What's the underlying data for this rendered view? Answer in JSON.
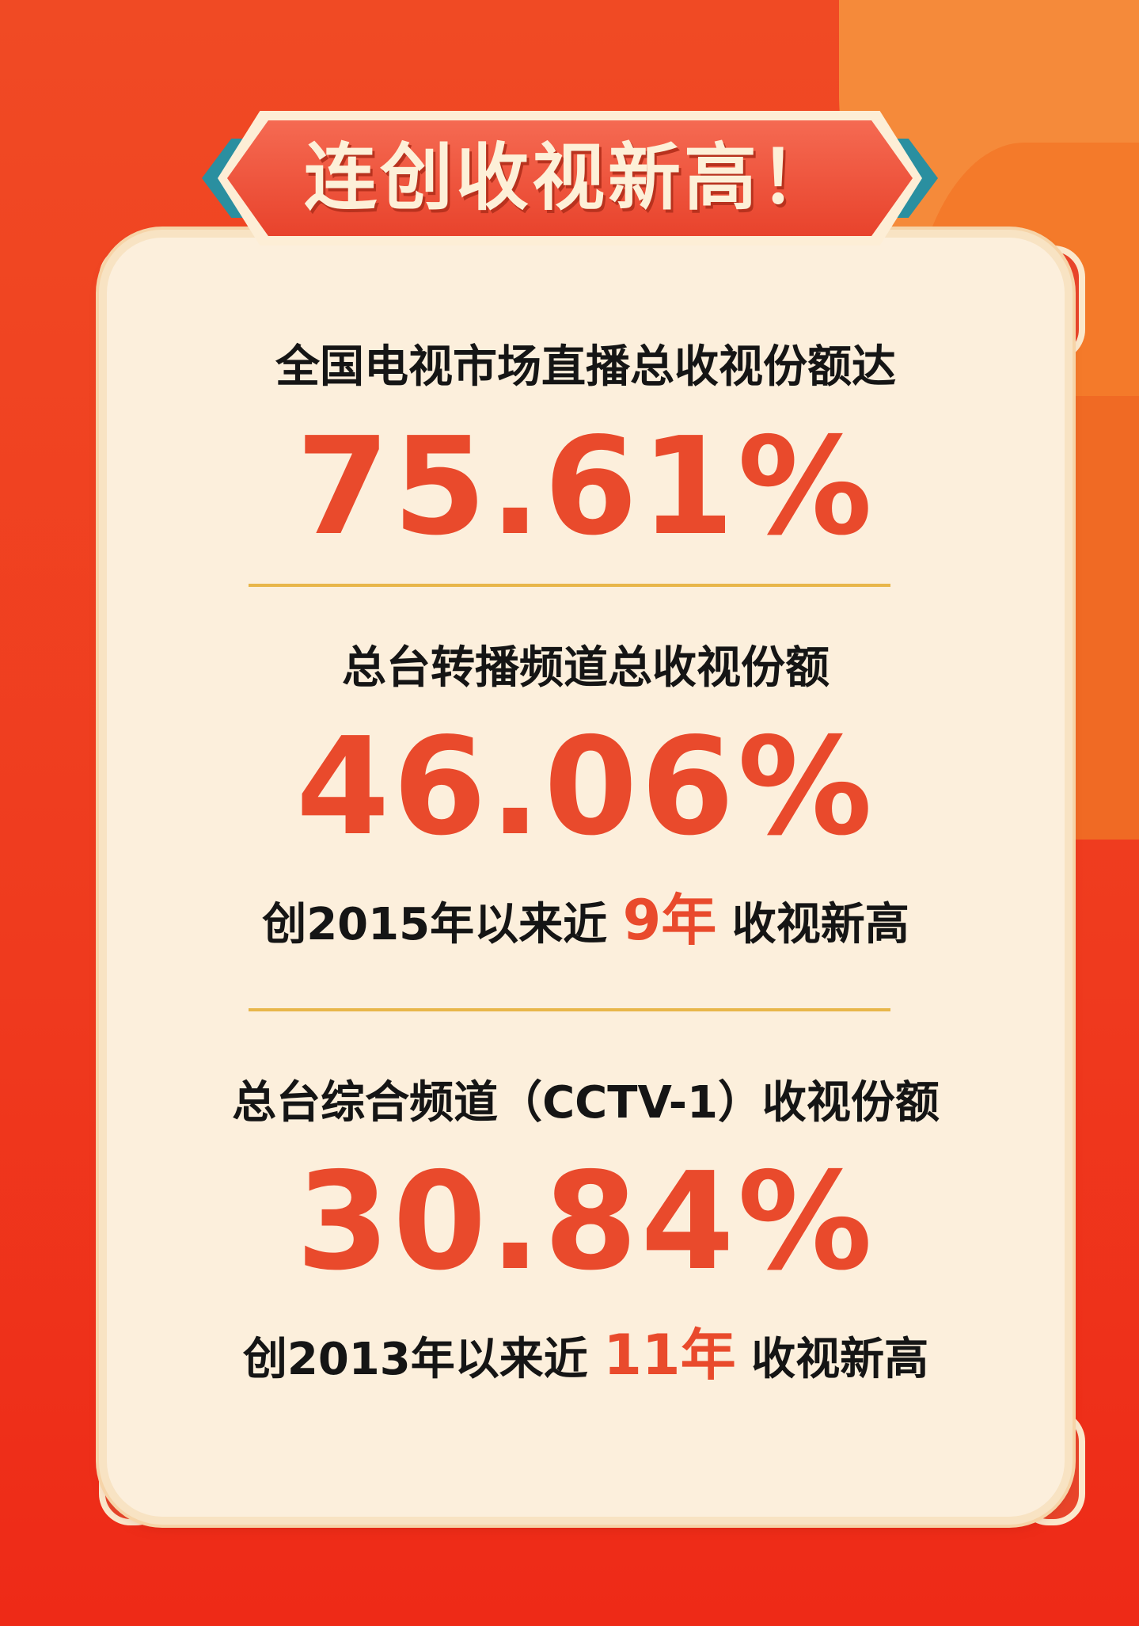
{
  "colors": {
    "background": "#ef3a1e",
    "card": "#fcefdc",
    "accent": "#e94a2c",
    "banner_teal": "#2a8fa0",
    "divider": "#e8b64a"
  },
  "banner": {
    "title": "连创收视新高！"
  },
  "sections": [
    {
      "label": "全国电视市场直播总收视份额达",
      "value": "75.61%"
    },
    {
      "label": "总台转播频道总收视份额",
      "value": "46.06%",
      "note": {
        "prefix": "创2015年以来近",
        "highlight": "9年",
        "suffix": "收视新高"
      }
    },
    {
      "label": "总台综合频道（CCTV-1）收视份额",
      "value": "30.84%",
      "note": {
        "prefix": "创2013年以来近",
        "highlight": "11年",
        "suffix": "收视新高"
      }
    }
  ]
}
